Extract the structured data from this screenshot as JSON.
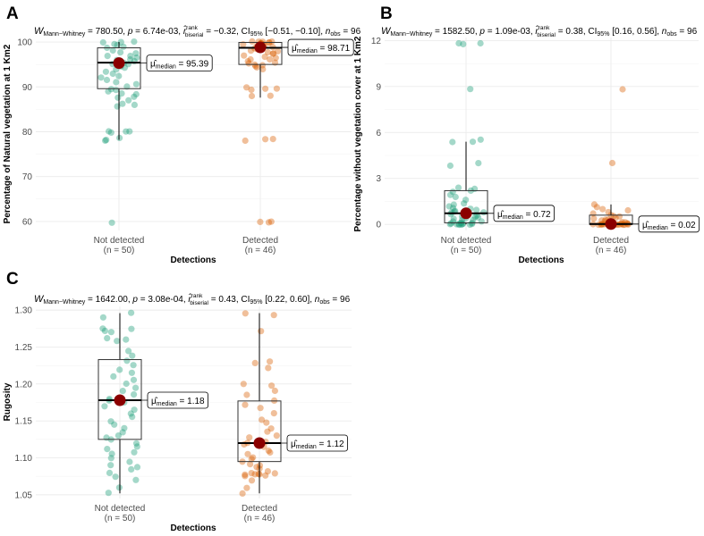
{
  "colors": {
    "not_detected": "#1b9e77",
    "detected": "#d95f02",
    "mean_point": "#8b0000",
    "grid": "#ebebeb",
    "text": "#4d4d4d"
  },
  "chart_data": [
    {
      "panel_label": "A",
      "type": "box-violin-jitter",
      "stats": {
        "w_value": "780.50",
        "p_value": "6.74e-03",
        "r_value": "−0.32",
        "ci": "[−0.51, −0.10]",
        "n_obs": "96"
      },
      "xlabel": "Detections",
      "ylabel": "Percentage of Natural vegetation at 1 Km2",
      "ylim": [
        58,
        101
      ],
      "yticks": [
        60,
        70,
        80,
        90,
        100
      ],
      "categories": [
        "Not detected",
        "Detected"
      ],
      "n_labels": [
        "(n = 50)",
        "(n = 46)"
      ],
      "boxes": [
        {
          "q1": 89.6,
          "median": 95.39,
          "q3": 98.7,
          "whisker_low": 78.2,
          "whisker_high": 100,
          "mean": 95.3,
          "median_label": "95.39"
        },
        {
          "q1": 95.0,
          "median": 98.71,
          "q3": 99.9,
          "whisker_low": 87.6,
          "whisker_high": 100,
          "mean": 98.8,
          "median_label": "98.71"
        }
      ],
      "points": [
        [
          100,
          100,
          100,
          99.6,
          99.3,
          99,
          98.6,
          98.2,
          97.8,
          97.4,
          97,
          96.8,
          96.5,
          96.2,
          96,
          95.8,
          95.6,
          95.4,
          95.2,
          95,
          94.6,
          94.2,
          93.8,
          93.4,
          93,
          92.5,
          92,
          91.5,
          91,
          90.5,
          90,
          89.5,
          89.3,
          89,
          88.6,
          88.3,
          87.9,
          87.5,
          87,
          86.2,
          86,
          85.7,
          80,
          80,
          80,
          79.7,
          78.5,
          78.2,
          78,
          59.8
        ],
        [
          100,
          100,
          100,
          100,
          100,
          99.9,
          99.8,
          99.7,
          99.6,
          99.5,
          99.4,
          99.2,
          99,
          98.8,
          98.6,
          98.4,
          98.2,
          98,
          97.8,
          97.6,
          97.3,
          97,
          96.8,
          96.5,
          96.2,
          96,
          95.8,
          95.5,
          95.3,
          95,
          94.8,
          94.6,
          94.3,
          94,
          89.8,
          89.6,
          89.5,
          89.4,
          88,
          87.9,
          78.5,
          78.3,
          78.1,
          60,
          59.9,
          59.8
        ]
      ]
    },
    {
      "panel_label": "B",
      "type": "box-violin-jitter",
      "stats": {
        "w_value": "1582.50",
        "p_value": "1.09e-03",
        "r_value": "0.38",
        "ci": "[0.16, 0.56]",
        "n_obs": "96"
      },
      "xlabel": "Detections",
      "ylabel": "Percentage without vegetation cover at 1 Km2",
      "ylim": [
        -0.4,
        12.2
      ],
      "yticks": [
        0,
        3,
        6,
        9,
        12
      ],
      "categories": [
        "Not detected",
        "Detected"
      ],
      "n_labels": [
        "(n = 50)",
        "(n = 46)"
      ],
      "boxes": [
        {
          "q1": 0.1,
          "median": 0.72,
          "q3": 2.2,
          "whisker_low": 0,
          "whisker_high": 5.4,
          "mean": 0.72,
          "median_label": "0.72"
        },
        {
          "q1": 0.0,
          "median": 0.02,
          "q3": 0.6,
          "whisker_low": 0,
          "whisker_high": 1.3,
          "mean": 0.02,
          "median_label": "0.02"
        }
      ],
      "points": [
        [
          11.8,
          11.8,
          11.8,
          8.8,
          5.5,
          5.4,
          5.4,
          4.0,
          3.8,
          2.4,
          2.3,
          2.2,
          2.1,
          1.9,
          1.8,
          1.6,
          1.4,
          1.3,
          1.2,
          1.1,
          1.0,
          0.95,
          0.9,
          0.85,
          0.8,
          0.75,
          0.7,
          0.6,
          0.55,
          0.5,
          0.45,
          0.4,
          0.35,
          0.3,
          0.25,
          0.2,
          0.15,
          0.12,
          0.1,
          0.08,
          0.06,
          0.05,
          0.04,
          0.03,
          0.02,
          0.01,
          0,
          0,
          0,
          0
        ],
        [
          8.8,
          4.0,
          1.3,
          1.1,
          1.0,
          0.9,
          0.8,
          0.7,
          0.6,
          0.55,
          0.5,
          0.45,
          0.4,
          0.35,
          0.3,
          0.25,
          0.2,
          0.18,
          0.15,
          0.12,
          0.1,
          0.08,
          0.06,
          0.05,
          0.04,
          0.03,
          0.02,
          0.02,
          0.01,
          0.01,
          0,
          0,
          0,
          0,
          0,
          0,
          0,
          0,
          0,
          0,
          0,
          0,
          0,
          0,
          0,
          0
        ]
      ]
    },
    {
      "panel_label": "C",
      "type": "box-violin-jitter",
      "stats": {
        "w_value": "1642.00",
        "p_value": "3.08e-04",
        "r_value": "0.43",
        "ci": "[0.22, 0.60]",
        "n_obs": "96"
      },
      "xlabel": "Detections",
      "ylabel": "Rugosity",
      "ylim": [
        1.045,
        1.305
      ],
      "yticks": [
        1.05,
        1.1,
        1.15,
        1.2,
        1.25,
        1.3
      ],
      "categories": [
        "Not detected",
        "Detected"
      ],
      "n_labels": [
        "(n = 50)",
        "(n = 46)"
      ],
      "boxes": [
        {
          "q1": 1.125,
          "median": 1.178,
          "q3": 1.233,
          "whisker_low": 1.052,
          "whisker_high": 1.296,
          "mean": 1.178,
          "median_label": "1.18"
        },
        {
          "q1": 1.095,
          "median": 1.12,
          "q3": 1.177,
          "whisker_low": 1.052,
          "whisker_high": 1.296,
          "mean": 1.12,
          "median_label": "1.12"
        }
      ],
      "points": [
        [
          1.296,
          1.29,
          1.275,
          1.274,
          1.272,
          1.27,
          1.262,
          1.26,
          1.258,
          1.245,
          1.238,
          1.232,
          1.226,
          1.22,
          1.215,
          1.21,
          1.205,
          1.2,
          1.195,
          1.19,
          1.185,
          1.18,
          1.178,
          1.175,
          1.17,
          1.165,
          1.16,
          1.155,
          1.15,
          1.145,
          1.14,
          1.135,
          1.13,
          1.128,
          1.125,
          1.12,
          1.115,
          1.112,
          1.108,
          1.105,
          1.1,
          1.095,
          1.09,
          1.088,
          1.085,
          1.08,
          1.075,
          1.07,
          1.06,
          1.052
        ],
        [
          1.296,
          1.294,
          1.272,
          1.23,
          1.228,
          1.222,
          1.2,
          1.198,
          1.19,
          1.185,
          1.178,
          1.172,
          1.168,
          1.16,
          1.152,
          1.148,
          1.14,
          1.135,
          1.13,
          1.128,
          1.122,
          1.12,
          1.118,
          1.115,
          1.11,
          1.108,
          1.105,
          1.1,
          1.098,
          1.095,
          1.092,
          1.09,
          1.088,
          1.085,
          1.082,
          1.08,
          1.079,
          1.078,
          1.078,
          1.078,
          1.077,
          1.076,
          1.075,
          1.07,
          1.06,
          1.052
        ]
      ]
    }
  ]
}
